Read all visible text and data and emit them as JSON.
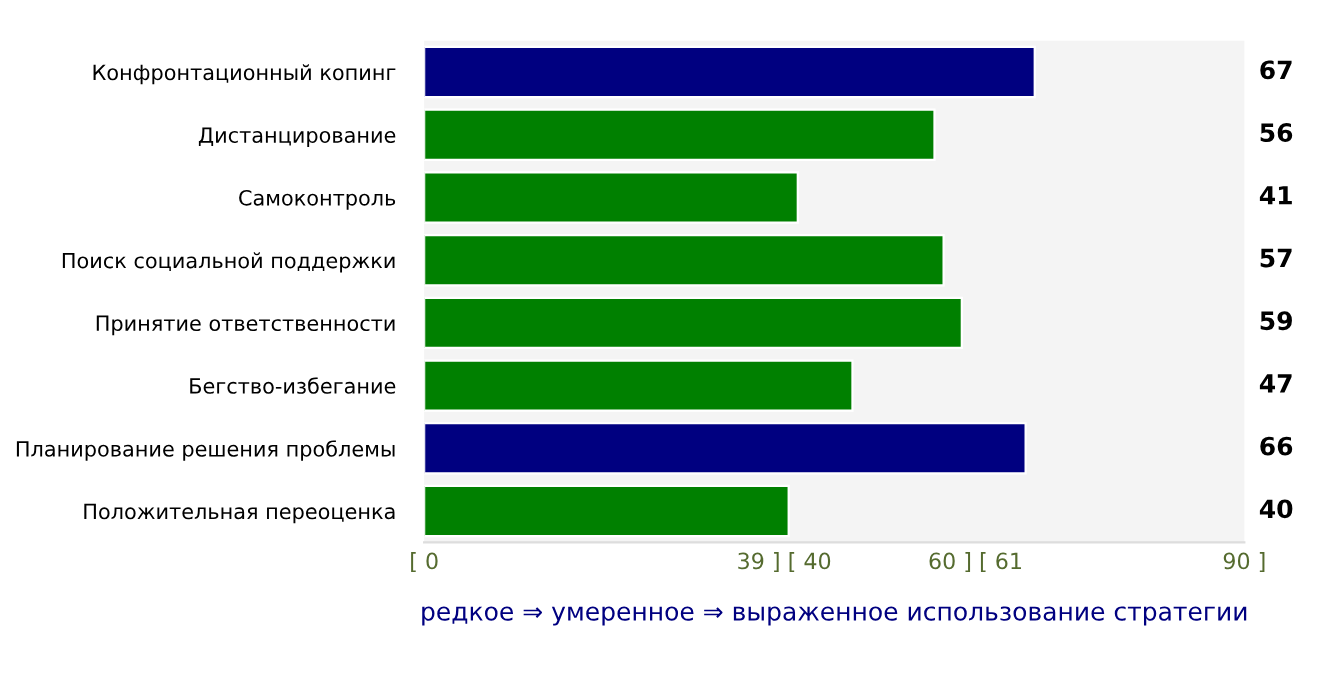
{
  "chart_data": {
    "type": "bar",
    "orientation": "horizontal",
    "categories": [
      "Конфронтационный копинг",
      "Дистанцирование",
      "Самоконтроль",
      "Поиск социальной поддержки",
      "Принятие ответственности",
      "Бегство-избегание",
      "Планирование решения проблемы",
      "Положительная переоценка"
    ],
    "values": [
      67,
      56,
      41,
      57,
      59,
      47,
      66,
      40
    ],
    "colors": [
      "#000080",
      "#008000",
      "#008000",
      "#008000",
      "#008000",
      "#008000",
      "#000080",
      "#008000"
    ],
    "xlim": [
      0,
      90
    ],
    "xticks": [
      {
        "value": 0,
        "label": "[ 0"
      },
      {
        "value": 39.5,
        "label": "39 ] [ 40"
      },
      {
        "value": 60.5,
        "label": "60 ] [ 61"
      },
      {
        "value": 90,
        "label": "90 ]"
      }
    ],
    "xlabel": "редкое ⇒ умеренное ⇒ выраженное использование стратегии",
    "data_labels": true,
    "grid": false,
    "legend": false
  }
}
